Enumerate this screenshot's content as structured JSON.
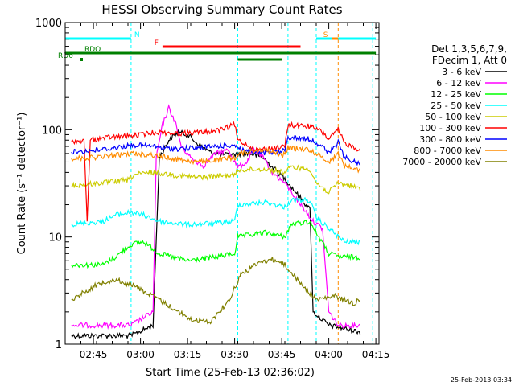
{
  "chart_data": {
    "type": "line",
    "title": "HESSI Observing Summary Count Rates",
    "xlabel": "Start Time (25-Feb-13 02:36:02)",
    "ylabel": "Count Rate (s⁻¹ detector⁻¹)",
    "y_scale": "log",
    "ylim": [
      1,
      1000
    ],
    "xlim": [
      "02:36",
      "04:16"
    ],
    "x_ticks": [
      "02:45",
      "03:00",
      "03:15",
      "03:30",
      "03:45",
      "04:00",
      "04:15"
    ],
    "y_ticks": [
      "1",
      "10",
      "100",
      "1000"
    ],
    "grid": false,
    "legend_position": "right",
    "legend_header": [
      "Det 1,3,5,6,7,9,",
      "FDecim 1, Att 0"
    ],
    "footer_date": "25-Feb-2013 03:34",
    "series": [
      {
        "name": "3 - 6 keV",
        "color": "#000000",
        "points": [
          [
            "02:38",
            1.2
          ],
          [
            "02:57",
            1.2
          ],
          [
            "03:04",
            1.5
          ],
          [
            "03:06",
            55
          ],
          [
            "03:09",
            80
          ],
          [
            "03:12",
            95
          ],
          [
            "03:15",
            90
          ],
          [
            "03:18",
            75
          ],
          [
            "03:22",
            62
          ],
          [
            "03:28",
            58
          ],
          [
            "03:32",
            60
          ],
          [
            "03:35",
            60
          ],
          [
            "03:39",
            55
          ],
          [
            "03:42",
            45
          ],
          [
            "03:46",
            35
          ],
          [
            "03:50",
            25
          ],
          [
            "03:54",
            18
          ],
          [
            "03:55",
            2.0
          ],
          [
            "04:00",
            1.5
          ],
          [
            "04:10",
            1.3
          ]
        ]
      },
      {
        "name": "6 - 12 keV",
        "color": "#ff00ff",
        "points": [
          [
            "02:38",
            1.5
          ],
          [
            "02:57",
            1.5
          ],
          [
            "03:04",
            2.0
          ],
          [
            "03:05",
            55
          ],
          [
            "03:07",
            110
          ],
          [
            "03:09",
            160
          ],
          [
            "03:11",
            120
          ],
          [
            "03:13",
            70
          ],
          [
            "03:16",
            55
          ],
          [
            "03:20",
            46
          ],
          [
            "03:24",
            60
          ],
          [
            "03:28",
            65
          ],
          [
            "03:31",
            45
          ],
          [
            "03:34",
            50
          ],
          [
            "03:36",
            65
          ],
          [
            "03:39",
            55
          ],
          [
            "03:42",
            40
          ],
          [
            "03:46",
            32
          ],
          [
            "03:50",
            22
          ],
          [
            "03:55",
            14
          ],
          [
            "03:58",
            12
          ],
          [
            "04:00",
            2.0
          ],
          [
            "04:03",
            1.5
          ],
          [
            "04:10",
            1.5
          ]
        ]
      },
      {
        "name": "12 - 25 keV",
        "color": "#00ff00",
        "points": [
          [
            "02:38",
            5.5
          ],
          [
            "02:48",
            5.5
          ],
          [
            "02:52",
            6.5
          ],
          [
            "02:57",
            8.5
          ],
          [
            "03:01",
            9.0
          ],
          [
            "03:06",
            7.0
          ],
          [
            "03:15",
            6.0
          ],
          [
            "03:24",
            6.5
          ],
          [
            "03:30",
            7.0
          ],
          [
            "03:31",
            10
          ],
          [
            "03:40",
            11
          ],
          [
            "03:46",
            10
          ],
          [
            "03:48",
            13
          ],
          [
            "03:54",
            14
          ],
          [
            "03:56",
            11
          ],
          [
            "04:00",
            7
          ],
          [
            "04:04",
            6.5
          ],
          [
            "04:10",
            6.5
          ]
        ]
      },
      {
        "name": "25 - 50 keV",
        "color": "#00ffff",
        "points": [
          [
            "02:38",
            13
          ],
          [
            "02:48",
            14
          ],
          [
            "02:52",
            16
          ],
          [
            "02:57",
            17
          ],
          [
            "03:01",
            16
          ],
          [
            "03:06",
            14
          ],
          [
            "03:15",
            13
          ],
          [
            "03:24",
            13.5
          ],
          [
            "03:30",
            14
          ],
          [
            "03:31",
            20
          ],
          [
            "03:40",
            21
          ],
          [
            "03:46",
            19
          ],
          [
            "03:48",
            22
          ],
          [
            "03:54",
            22
          ],
          [
            "03:56",
            15
          ],
          [
            "04:00",
            12
          ],
          [
            "04:05",
            9
          ],
          [
            "04:10",
            9
          ]
        ]
      },
      {
        "name": "50 - 100 keV",
        "color": "#cccc00",
        "points": [
          [
            "02:38",
            30
          ],
          [
            "02:48",
            32
          ],
          [
            "02:56",
            34
          ],
          [
            "02:58",
            38
          ],
          [
            "03:04",
            40
          ],
          [
            "03:10",
            38
          ],
          [
            "03:18",
            36
          ],
          [
            "03:24",
            37
          ],
          [
            "03:30",
            38
          ],
          [
            "03:31",
            42
          ],
          [
            "03:40",
            43
          ],
          [
            "03:46",
            40
          ],
          [
            "03:48",
            45
          ],
          [
            "03:54",
            43
          ],
          [
            "03:56",
            32
          ],
          [
            "04:00",
            26
          ],
          [
            "04:03",
            32
          ],
          [
            "04:07",
            30
          ],
          [
            "04:10",
            28
          ]
        ]
      },
      {
        "name": "100 - 300 keV",
        "color": "#ff0000",
        "points": [
          [
            "02:38",
            78
          ],
          [
            "02:42",
            78
          ],
          [
            "02:43",
            14
          ],
          [
            "02:44",
            80
          ],
          [
            "02:50",
            85
          ],
          [
            "02:58",
            88
          ],
          [
            "03:05",
            95
          ],
          [
            "03:12",
            92
          ],
          [
            "03:20",
            95
          ],
          [
            "03:26",
            100
          ],
          [
            "03:30",
            112
          ],
          [
            "03:31",
            80
          ],
          [
            "03:37",
            65
          ],
          [
            "03:44",
            68
          ],
          [
            "03:46",
            70
          ],
          [
            "03:47",
            110
          ],
          [
            "03:54",
            108
          ],
          [
            "03:58",
            95
          ],
          [
            "04:00",
            82
          ],
          [
            "04:03",
            100
          ],
          [
            "04:05",
            75
          ],
          [
            "04:10",
            65
          ]
        ]
      },
      {
        "name": "300 - 800 keV",
        "color": "#0000ff",
        "points": [
          [
            "02:38",
            62
          ],
          [
            "02:45",
            64
          ],
          [
            "02:52",
            68
          ],
          [
            "02:58",
            72
          ],
          [
            "03:04",
            70
          ],
          [
            "03:10",
            66
          ],
          [
            "03:18",
            68
          ],
          [
            "03:24",
            70
          ],
          [
            "03:30",
            72
          ],
          [
            "03:32",
            66
          ],
          [
            "03:38",
            60
          ],
          [
            "03:44",
            62
          ],
          [
            "03:46",
            64
          ],
          [
            "03:47",
            85
          ],
          [
            "03:54",
            82
          ],
          [
            "03:58",
            70
          ],
          [
            "04:00",
            60
          ],
          [
            "04:03",
            76
          ],
          [
            "04:05",
            55
          ],
          [
            "04:10",
            48
          ]
        ]
      },
      {
        "name": "800 - 7000 keV",
        "color": "#ff8c00",
        "points": [
          [
            "02:38",
            54
          ],
          [
            "02:45",
            55
          ],
          [
            "02:52",
            58
          ],
          [
            "02:58",
            60
          ],
          [
            "03:04",
            58
          ],
          [
            "03:10",
            54
          ],
          [
            "03:18",
            50
          ],
          [
            "03:24",
            52
          ],
          [
            "03:30",
            55
          ],
          [
            "03:32",
            60
          ],
          [
            "03:38",
            66
          ],
          [
            "03:44",
            60
          ],
          [
            "03:46",
            58
          ],
          [
            "03:47",
            68
          ],
          [
            "03:54",
            65
          ],
          [
            "03:58",
            55
          ],
          [
            "04:00",
            50
          ],
          [
            "04:03",
            60
          ],
          [
            "04:05",
            46
          ],
          [
            "04:10",
            42
          ]
        ]
      },
      {
        "name": "7000 - 20000 keV",
        "color": "#808000",
        "points": [
          [
            "02:38",
            2.6
          ],
          [
            "02:43",
            3.2
          ],
          [
            "02:48",
            3.8
          ],
          [
            "02:52",
            4.0
          ],
          [
            "02:58",
            3.5
          ],
          [
            "03:04",
            2.8
          ],
          [
            "03:10",
            2.2
          ],
          [
            "03:16",
            1.7
          ],
          [
            "03:22",
            1.6
          ],
          [
            "03:28",
            2.5
          ],
          [
            "03:32",
            4.5
          ],
          [
            "03:38",
            5.8
          ],
          [
            "03:42",
            6.2
          ],
          [
            "03:46",
            5.5
          ],
          [
            "03:50",
            4.0
          ],
          [
            "03:54",
            3.0
          ],
          [
            "03:56",
            2.6
          ],
          [
            "04:02",
            2.8
          ],
          [
            "04:08",
            2.4
          ],
          [
            "04:10",
            2.6
          ]
        ]
      }
    ],
    "annotations": {
      "status_flags": [
        {
          "label": "N",
          "color": "#00ffff",
          "segments": [
            [
              "02:36",
              "02:57"
            ],
            [
              "03:56",
              "04:15"
            ]
          ]
        },
        {
          "label": "F",
          "color": "#ff0000",
          "segments": [
            [
              "03:07",
              "03:51"
            ]
          ]
        },
        {
          "label": "S",
          "color": "#ff8c00",
          "segments": [
            [
              "04:01",
              "04:03"
            ]
          ]
        },
        {
          "label": "RDO",
          "color": "#008000",
          "segments": [
            [
              "02:36",
              "04:15"
            ]
          ]
        },
        {
          "label": "RD6",
          "color": "#008000",
          "segments": [
            [
              "03:31",
              "03:45"
            ]
          ]
        }
      ],
      "vlines": [
        {
          "time": "02:36",
          "color": "#00ffff",
          "style": "dashed"
        },
        {
          "time": "02:57",
          "color": "#00ffff",
          "style": "dashed"
        },
        {
          "time": "03:31",
          "color": "#00ffff",
          "style": "dashed"
        },
        {
          "time": "03:47",
          "color": "#00ffff",
          "style": "dashed"
        },
        {
          "time": "03:56",
          "color": "#00ffff",
          "style": "dashed"
        },
        {
          "time": "04:01",
          "color": "#ff8c00",
          "style": "dashed"
        },
        {
          "time": "04:03",
          "color": "#ff8c00",
          "style": "dashed"
        },
        {
          "time": "04:14",
          "color": "#00ffff",
          "style": "dashed"
        }
      ]
    }
  }
}
